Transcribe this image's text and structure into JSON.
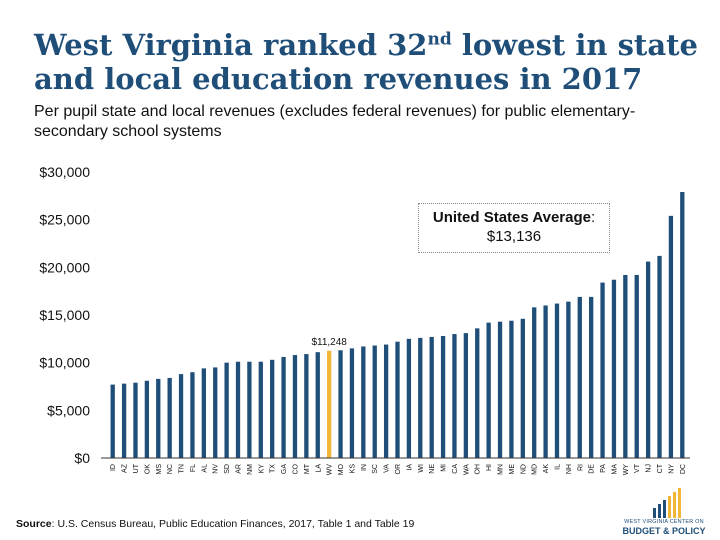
{
  "header": {
    "title_part1": "West Virginia ranked 32",
    "title_sup": "nd",
    "title_part2": " lowest in state and local education revenues in 2017",
    "subtitle": "Per pupil state and local revenues (excludes federal revenues) for public elementary-secondary school systems"
  },
  "average_box": {
    "label": "United States Average",
    "colon": ":",
    "value": "$13,136"
  },
  "source": {
    "label": "Source",
    "text": ": U.S. Census Bureau, Public Education Finances, 2017, Table 1 and Table 19"
  },
  "logo": {
    "line1": "WEST VIRGINIA CENTER ON",
    "line2": "BUDGET & POLICY"
  },
  "colors": {
    "bar": "#1f4e79",
    "highlight": "#f2b637",
    "axis": "#333333"
  },
  "chart_data": {
    "type": "bar",
    "categories": [
      "ID",
      "AZ",
      "UT",
      "OK",
      "MS",
      "NC",
      "TN",
      "FL",
      "AL",
      "NV",
      "SD",
      "AR",
      "NM",
      "KY",
      "TX",
      "GA",
      "CO",
      "MT",
      "LA",
      "WV",
      "MO",
      "KS",
      "IN",
      "SC",
      "VA",
      "OR",
      "IA",
      "WI",
      "NE",
      "MI",
      "CA",
      "WA",
      "OH",
      "HI",
      "MN",
      "ME",
      "ND",
      "MD",
      "AK",
      "IL",
      "NH",
      "RI",
      "DE",
      "PA",
      "MA",
      "WY",
      "VT",
      "NJ",
      "CT",
      "NY",
      "DC"
    ],
    "values": [
      7700,
      7800,
      7900,
      8100,
      8300,
      8400,
      8800,
      9000,
      9400,
      9500,
      10000,
      10100,
      10100,
      10100,
      10300,
      10600,
      10800,
      10900,
      11100,
      11248,
      11300,
      11500,
      11700,
      11800,
      11900,
      12200,
      12500,
      12600,
      12700,
      12800,
      13000,
      13100,
      13600,
      14200,
      14300,
      14400,
      14600,
      15800,
      16000,
      16200,
      16400,
      16900,
      16900,
      18400,
      18700,
      19200,
      19200,
      20600,
      21200,
      25400,
      27900
    ],
    "highlight_category": "WV",
    "highlight_label": "$11,248",
    "yticks": [
      "$0",
      "$5,000",
      "$10,000",
      "$15,000",
      "$20,000",
      "$25,000",
      "$30,000"
    ],
    "ylim": [
      0,
      30000
    ],
    "grid": false,
    "legend": "none"
  }
}
